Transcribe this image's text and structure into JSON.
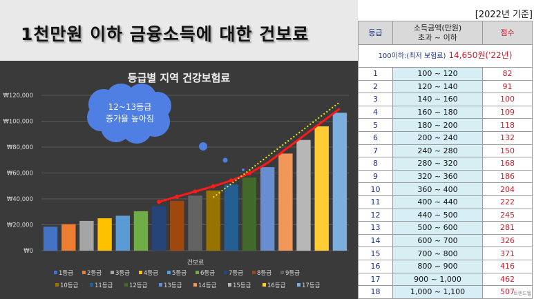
{
  "page": {
    "title": "1천만원 이하 금융소득에 대한 건보료",
    "year_note": "[2022년 기준]",
    "watermark": "트렌드웹"
  },
  "callout": {
    "line1": "12~13등급",
    "line2": "증가율 높아짐"
  },
  "colors": {
    "chart_bg": "#3a3a3a",
    "trend_line": "#ff1a1a",
    "trend_dotted": "#f0f000",
    "callout_fill": "#4f7fe3",
    "score_text": "#d11a2a",
    "range_fill": "#d7eef4"
  },
  "chart_data": {
    "type": "bar",
    "title": "등급별 지역 건강보험료",
    "xlabel": "건보료",
    "ylabel": "",
    "ylim": [
      0,
      120000
    ],
    "yticks": [
      "₩0",
      "₩20,000",
      "₩40,000",
      "₩60,000",
      "₩80,000",
      "₩100,000",
      "₩120,000"
    ],
    "categories": [
      "1등급",
      "2등급",
      "3등급",
      "4등급",
      "5등급",
      "6등급",
      "7등급",
      "8등급",
      "9등급",
      "10등급",
      "11등급",
      "12등급",
      "13등급",
      "14등급",
      "15등급",
      "16등급",
      "17등급"
    ],
    "values": [
      18500,
      20500,
      23000,
      25000,
      27000,
      30500,
      34500,
      38500,
      42500,
      46500,
      51000,
      56500,
      64500,
      75000,
      85500,
      96000,
      106500
    ],
    "bar_colors": [
      "#4472c4",
      "#ed7d31",
      "#a5a5a5",
      "#ffc000",
      "#5b9bd5",
      "#70ad47",
      "#264478",
      "#9e480e",
      "#636363",
      "#997300",
      "#255e91",
      "#43682b",
      "#698ed0",
      "#f1975a",
      "#b7b7b7",
      "#ffcd33",
      "#7cafdd"
    ],
    "legend_position": "bottom",
    "grid": true
  },
  "table": {
    "headers": {
      "grade": "등급",
      "range_line1": "소득금액(만원)",
      "range_line2": "초과 ~ 이하",
      "score": "점수"
    },
    "min_row": {
      "label": "100이하:(최저 보험료)",
      "value": "14,650원('22년)"
    },
    "rows": [
      {
        "grade": "1",
        "range": "100  ~  120",
        "score": "82"
      },
      {
        "grade": "2",
        "range": "120  ~  140",
        "score": "91"
      },
      {
        "grade": "3",
        "range": "140  ~  160",
        "score": "100"
      },
      {
        "grade": "4",
        "range": "160  ~  180",
        "score": "109"
      },
      {
        "grade": "5",
        "range": "180  ~  200",
        "score": "118"
      },
      {
        "grade": "6",
        "range": "200  ~  240",
        "score": "132"
      },
      {
        "grade": "7",
        "range": "240  ~  280",
        "score": "150"
      },
      {
        "grade": "8",
        "range": "280  ~  320",
        "score": "168"
      },
      {
        "grade": "9",
        "range": "320  ~  360",
        "score": "186"
      },
      {
        "grade": "10",
        "range": "360  ~  400",
        "score": "204"
      },
      {
        "grade": "11",
        "range": "400  ~  440",
        "score": "222"
      },
      {
        "grade": "12",
        "range": "440  ~  500",
        "score": "245"
      },
      {
        "grade": "13",
        "range": "500  ~  600",
        "score": "281"
      },
      {
        "grade": "14",
        "range": "600  ~  700",
        "score": "326"
      },
      {
        "grade": "15",
        "range": "700  ~  800",
        "score": "371"
      },
      {
        "grade": "16",
        "range": "800  ~  900",
        "score": "416"
      },
      {
        "grade": "17",
        "range": "900  ~  1,000",
        "score": "462"
      },
      {
        "grade": "18",
        "range": "1,000  ~  1,100",
        "score": "507"
      }
    ]
  }
}
